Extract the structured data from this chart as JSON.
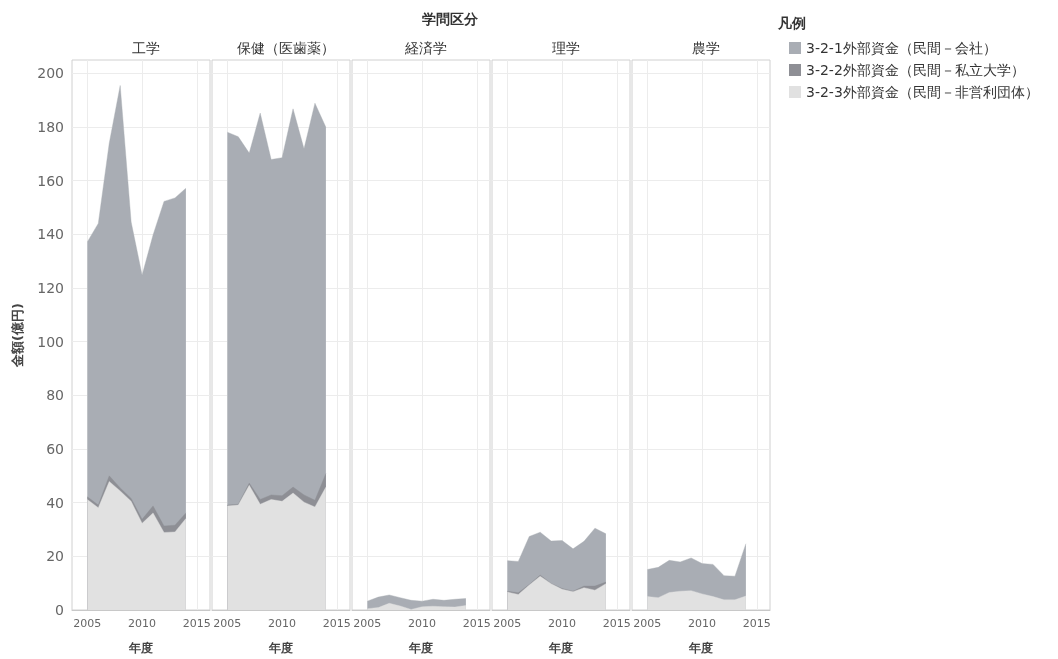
{
  "chart_data": [
    {
      "type": "area",
      "title": "工学",
      "annotations": [
        "学問区分"
      ],
      "xlabel": "年度",
      "ylabel": "金額(億円)",
      "legend_title": "凡例",
      "legend": "right",
      "grid": true,
      "stacked": true,
      "x": [
        2005,
        2006,
        2007,
        2008,
        2009,
        2010,
        2011,
        2012,
        2013,
        2014
      ],
      "xlim": [
        2003.6,
        2016.2
      ],
      "xticks": [
        2005,
        2010,
        2015
      ],
      "ylim": [
        0,
        205
      ],
      "yticks": [
        0,
        20,
        40,
        60,
        80,
        100,
        120,
        140,
        160,
        180,
        200
      ],
      "series": [
        {
          "name": "3-2-3外部資金（民間－非営利団体）",
          "color": "#e1e1e1",
          "values": [
            41.2,
            38.1,
            47.9,
            44.4,
            40.5,
            32.3,
            36.2,
            28.9,
            29.1,
            34.1
          ]
        },
        {
          "name": "3-2-2外部資金（民間－私立大学）",
          "color": "#8e8f95",
          "values": [
            1.0,
            1.0,
            2.1,
            1.1,
            1.1,
            1.5,
            2.6,
            2.4,
            2.5,
            2.1
          ]
        },
        {
          "name": "3-2-1外部資金（民間－会社）",
          "color": "#a9adb4",
          "values": [
            95,
            105,
            124,
            150,
            103,
            91,
            101,
            121,
            122,
            121
          ]
        }
      ]
    },
    {
      "type": "area",
      "title": "保健（医歯薬）",
      "xlabel": "年度",
      "tick_labels": "x",
      "grid": true,
      "stacked": true,
      "x": [
        2005,
        2006,
        2007,
        2008,
        2009,
        2010,
        2011,
        2012,
        2013,
        2014
      ],
      "xlim": [
        2003.6,
        2016.2
      ],
      "xticks": [
        2005,
        2010,
        2015
      ],
      "ylim": [
        0,
        205
      ],
      "yticks": [
        0,
        20,
        40,
        60,
        80,
        100,
        120,
        140,
        160,
        180,
        200
      ],
      "series": [
        {
          "color": "#e1e1e1",
          "values": [
            38.8,
            39.1,
            46.5,
            39.4,
            41.2,
            40.5,
            43.6,
            40.2,
            38.4,
            45.8
          ]
        },
        {
          "color": "#8e8f95",
          "values": [
            0.3,
            0.3,
            0.8,
            1.8,
            1.7,
            2.1,
            2.2,
            2.7,
            2.5,
            5.1
          ]
        },
        {
          "color": "#a9adb4",
          "values": [
            139,
            137,
            123,
            144,
            125,
            126,
            141,
            129,
            148,
            129
          ]
        }
      ]
    },
    {
      "type": "area",
      "title": "経済学",
      "xlabel": "年度",
      "tick_labels": "x",
      "grid": true,
      "stacked": true,
      "x": [
        2005,
        2006,
        2007,
        2008,
        2009,
        2010,
        2011,
        2012,
        2013,
        2014
      ],
      "xlim": [
        2003.6,
        2016.2
      ],
      "xticks": [
        2005,
        2010,
        2015
      ],
      "ylim": [
        0,
        205
      ],
      "yticks": [
        0,
        20,
        40,
        60,
        80,
        100,
        120,
        140,
        160,
        180,
        200
      ],
      "series": [
        {
          "color": "#e1e1e1",
          "values": [
            0.5,
            0.9,
            2.5,
            1.5,
            0.2,
            1.2,
            1.4,
            1.2,
            1.1,
            1.7
          ]
        },
        {
          "color": "#a9adb4",
          "values": [
            2.8,
            3.9,
            3.1,
            3.1,
            3.4,
            2.1,
            2.6,
            2.4,
            2.9,
            2.6
          ]
        }
      ]
    },
    {
      "type": "area",
      "title": "理学",
      "xlabel": "年度",
      "tick_labels": "x",
      "grid": true,
      "stacked": true,
      "x": [
        2005,
        2006,
        2007,
        2008,
        2009,
        2010,
        2011,
        2012,
        2013,
        2014
      ],
      "xlim": [
        2003.6,
        2016.2
      ],
      "xticks": [
        2005,
        2010,
        2015
      ],
      "ylim": [
        0,
        205
      ],
      "yticks": [
        0,
        20,
        40,
        60,
        80,
        100,
        120,
        140,
        160,
        180,
        200
      ],
      "series": [
        {
          "color": "#e1e1e1",
          "values": [
            6.7,
            5.8,
            9.3,
            12.6,
            9.8,
            7.7,
            6.8,
            8.3,
            7.4,
            9.8
          ]
        },
        {
          "color": "#8e8f95",
          "values": [
            0.3,
            0.6,
            0.2,
            0.4,
            0.1,
            0.3,
            0.2,
            0.6,
            1.5,
            0.6
          ]
        },
        {
          "color": "#a9adb4",
          "values": [
            11.4,
            11.7,
            17.9,
            16,
            15.8,
            17.9,
            15.8,
            16.7,
            21.6,
            18
          ]
        }
      ]
    },
    {
      "type": "area",
      "title": "農学",
      "xlabel": "年度",
      "tick_labels": "x",
      "grid": true,
      "stacked": true,
      "x": [
        2005,
        2006,
        2007,
        2008,
        2009,
        2010,
        2011,
        2012,
        2013,
        2014
      ],
      "xlim": [
        2003.6,
        2016.2
      ],
      "xticks": [
        2005,
        2010,
        2015
      ],
      "ylim": [
        0,
        205
      ],
      "yticks": [
        0,
        20,
        40,
        60,
        80,
        100,
        120,
        140,
        160,
        180,
        200
      ],
      "series": [
        {
          "color": "#e1e1e1",
          "values": [
            5.0,
            4.6,
            6.5,
            7.0,
            7.2,
            6.0,
            5.0,
            3.8,
            3.8,
            5.2
          ]
        },
        {
          "color": "#a9adb4",
          "values": [
            10.1,
            11.3,
            12.0,
            10.9,
            12.2,
            11.3,
            12.0,
            9.0,
            8.8,
            19.5
          ]
        }
      ]
    }
  ]
}
